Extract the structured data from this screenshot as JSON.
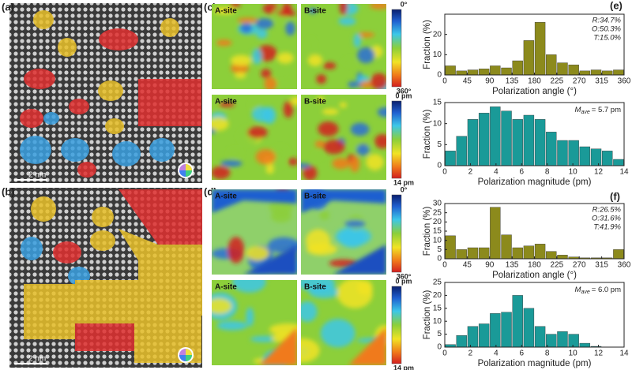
{
  "panels": {
    "a": {
      "label": "(a)",
      "scale_bar": "2 nm"
    },
    "b": {
      "label": "(b)",
      "scale_bar": "2 nm"
    },
    "c": {
      "label": "(c)",
      "maps": [
        "A-site",
        "B-site",
        "A-site",
        "B-site"
      ],
      "colorbars": [
        {
          "top": "0°",
          "bottom": "360°"
        },
        {
          "top": "0 pm",
          "bottom": "14 pm"
        }
      ]
    },
    "d": {
      "label": "(d)",
      "maps": [
        "A-site",
        "B-site",
        "A-site",
        "B-site"
      ],
      "colorbars": [
        {
          "top": "0°",
          "bottom": "360°"
        },
        {
          "top": "0 pm",
          "bottom": "14 pm"
        }
      ]
    },
    "e": {
      "label": "(e)"
    },
    "f": {
      "label": "(f)"
    }
  },
  "chart_data": [
    {
      "type": "histogram",
      "x_label": "Polarization angle (°)",
      "y_label": "Fraction (%)",
      "color": "#8c8a1c",
      "bins": [
        0,
        22.5,
        45,
        67.5,
        90,
        112.5,
        135,
        157.5,
        180,
        202.5,
        225,
        247.5,
        270,
        292.5,
        315,
        337.5,
        360
      ],
      "values": [
        4.5,
        2,
        2.5,
        3,
        4.5,
        3.5,
        7,
        17,
        26,
        10,
        6,
        5,
        2,
        2.5,
        2,
        2.5
      ],
      "xlim": [
        0,
        360
      ],
      "xticks": [
        0,
        45,
        90,
        135,
        180,
        225,
        270,
        315,
        360
      ],
      "ylim": [
        0,
        30
      ],
      "yticks": [
        0,
        10,
        20
      ],
      "annotation": [
        "R:34.7%",
        "O:50.3%",
        "T:15.0%"
      ]
    },
    {
      "type": "histogram",
      "x_label": "Polarization magnitude (pm)",
      "y_label": "Fraction (%)",
      "color": "#1a9a98",
      "bins": [
        0,
        0.875,
        1.75,
        2.625,
        3.5,
        4.375,
        5.25,
        6.125,
        7,
        7.875,
        8.75,
        9.625,
        10.5,
        11.375,
        12.25,
        13.125,
        14
      ],
      "values": [
        3.5,
        7,
        11,
        12.5,
        14,
        13,
        11,
        12,
        11,
        8,
        6,
        6,
        4.5,
        4,
        3.5,
        1.5
      ],
      "xlim": [
        0,
        14
      ],
      "xticks": [
        0,
        2,
        4,
        6,
        8,
        10,
        12,
        14
      ],
      "ylim": [
        0,
        15
      ],
      "yticks": [
        0,
        5,
        10,
        15
      ],
      "annotation": {
        "symbol": "M",
        "subscript": "ave",
        "text": "= 5.7 pm"
      }
    },
    {
      "type": "histogram",
      "x_label": "Polarization angle (°)",
      "y_label": "Fraction (%)",
      "color": "#8c8a1c",
      "bins": [
        0,
        22.5,
        45,
        67.5,
        90,
        112.5,
        135,
        157.5,
        180,
        202.5,
        225,
        247.5,
        270,
        292.5,
        315,
        337.5,
        360
      ],
      "values": [
        12.5,
        5,
        6,
        6,
        28,
        13,
        6,
        7,
        8,
        4,
        2,
        1,
        0.5,
        0.5,
        0.5,
        5
      ],
      "xlim": [
        0,
        360
      ],
      "xticks": [
        0,
        45,
        90,
        135,
        180,
        225,
        270,
        315,
        360
      ],
      "ylim": [
        0,
        30
      ],
      "yticks": [
        0,
        5,
        10,
        15,
        20,
        25,
        30
      ],
      "annotation": [
        "R:26.5%",
        "O:31.6%",
        "T:41.9%"
      ]
    },
    {
      "type": "histogram",
      "x_label": "Polarization magnitude (pm)",
      "y_label": "Fraction (%)",
      "color": "#1a9a98",
      "bins": [
        0,
        0.875,
        1.75,
        2.625,
        3.5,
        4.375,
        5.25,
        6.125,
        7,
        7.875,
        8.75,
        9.625,
        10.5,
        11.375,
        12.25,
        13.125,
        14
      ],
      "values": [
        1,
        4.5,
        8,
        9,
        13,
        13.5,
        20,
        15,
        8,
        5,
        6,
        5,
        1.5,
        0.3,
        0,
        0
      ],
      "xlim": [
        0,
        14
      ],
      "xticks": [
        0,
        2,
        4,
        6,
        8,
        10,
        12,
        14
      ],
      "ylim": [
        0,
        25
      ],
      "yticks": [
        0,
        5,
        10,
        15,
        20,
        25
      ],
      "annotation": {
        "symbol": "M",
        "subscript": "ave",
        "text": "= 6.0 pm"
      }
    }
  ]
}
